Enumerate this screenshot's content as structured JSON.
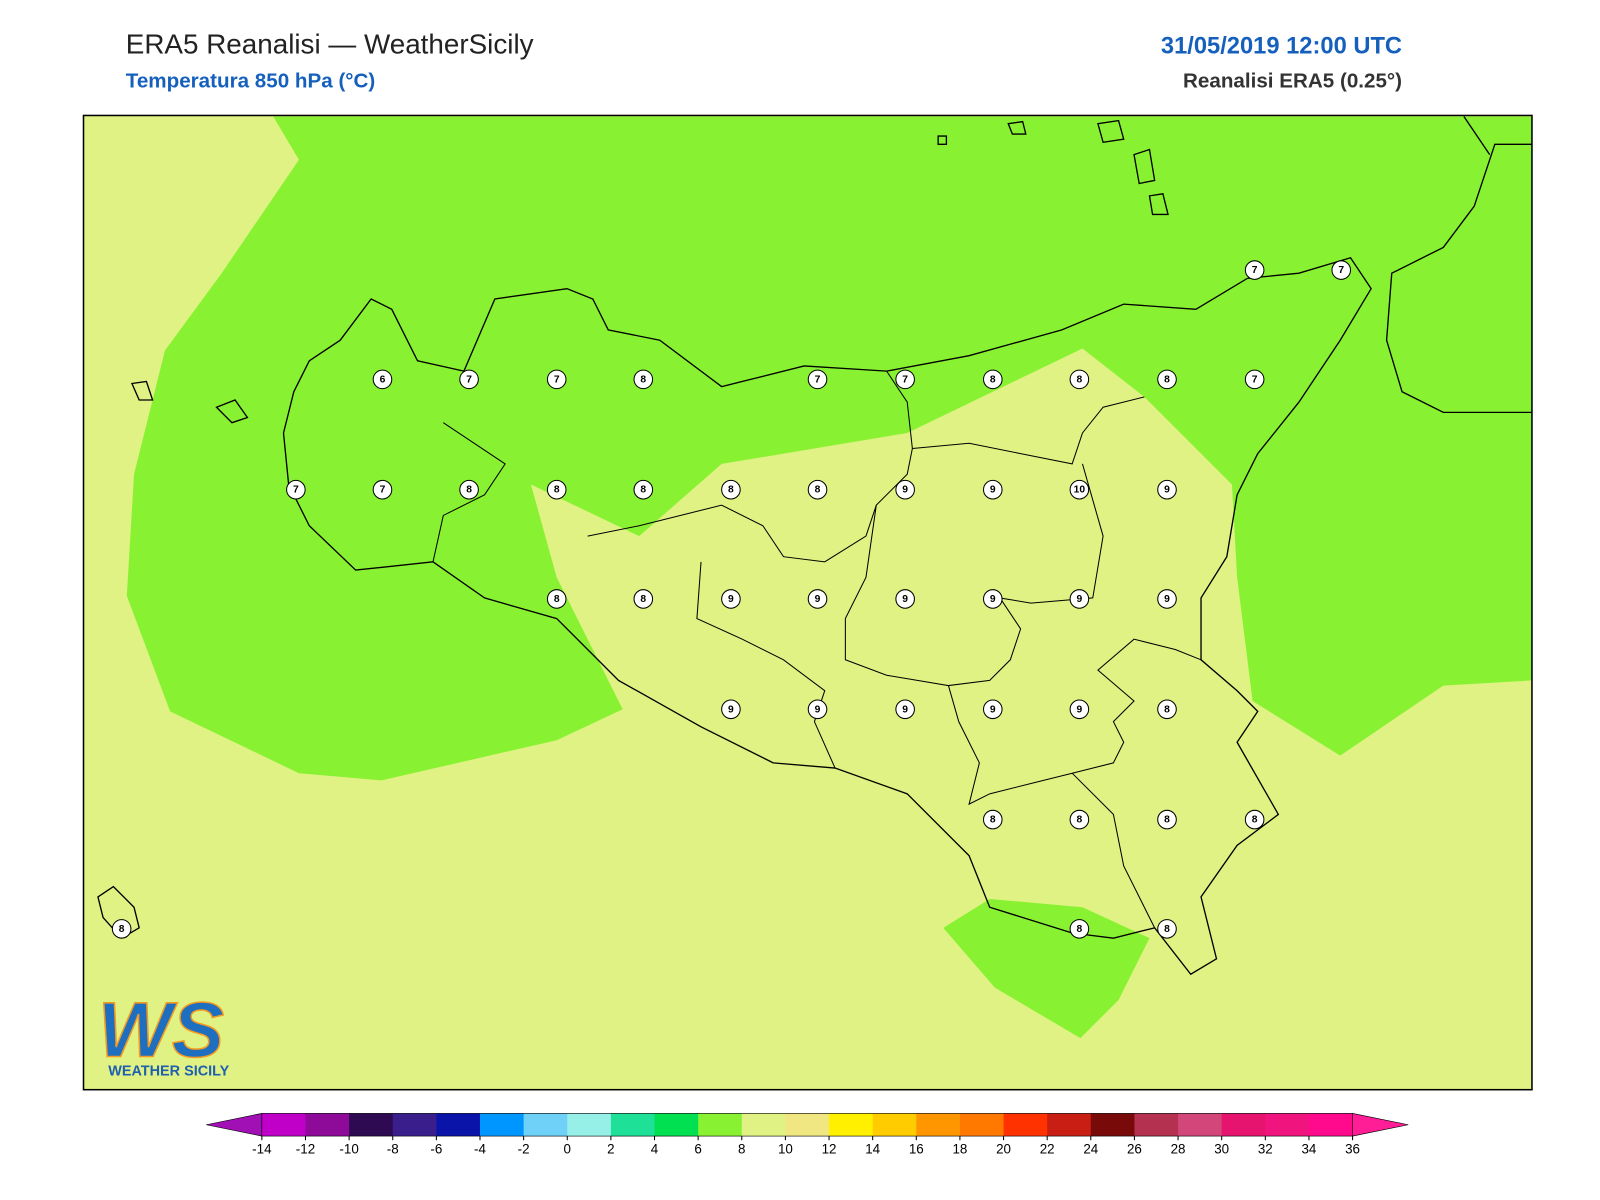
{
  "header": {
    "title": "ERA5 Reanalisi — WeatherSicily",
    "subtitle": "Temperatura 850 hPa (°C)",
    "datetime": "31/05/2019 12:00 UTC",
    "model": "Reanalisi ERA5 (0.25°)"
  },
  "map": {
    "background_color": "#e0f283",
    "region_color": "#88f232"
  },
  "station_values": [
    7,
    7,
    6,
    7,
    7,
    8,
    7,
    7,
    8,
    8,
    8,
    7,
    7,
    7,
    8,
    8,
    8,
    8,
    8,
    9,
    9,
    10,
    9,
    8,
    8,
    9,
    9,
    9,
    9,
    9,
    9,
    9,
    9,
    9,
    9,
    9,
    8,
    8,
    8,
    8,
    8,
    8,
    8,
    8
  ],
  "logo": {
    "mark": "WS",
    "text": "WEATHER SICILY"
  },
  "colorbar": {
    "ticks": [
      -14,
      -12,
      -10,
      -8,
      -6,
      -4,
      -2,
      0,
      2,
      4,
      6,
      8,
      10,
      12,
      14,
      16,
      18,
      20,
      22,
      24,
      26,
      28,
      30,
      32,
      34,
      36
    ],
    "colors": [
      "#c000c8",
      "#8e0a98",
      "#2d0a52",
      "#3a1f8c",
      "#0a14a8",
      "#0096ff",
      "#6fd0f8",
      "#96f0e8",
      "#1ee096",
      "#00e050",
      "#88f232",
      "#e0f283",
      "#f0e682",
      "#fff000",
      "#ffcc00",
      "#ff9600",
      "#ff7800",
      "#ff3200",
      "#c81e14",
      "#780a0a",
      "#b43250",
      "#d2467a",
      "#e6146e",
      "#f0147e",
      "#ff0a8c"
    ],
    "under_color": "#a010b4",
    "over_color": "#ff1e96"
  }
}
